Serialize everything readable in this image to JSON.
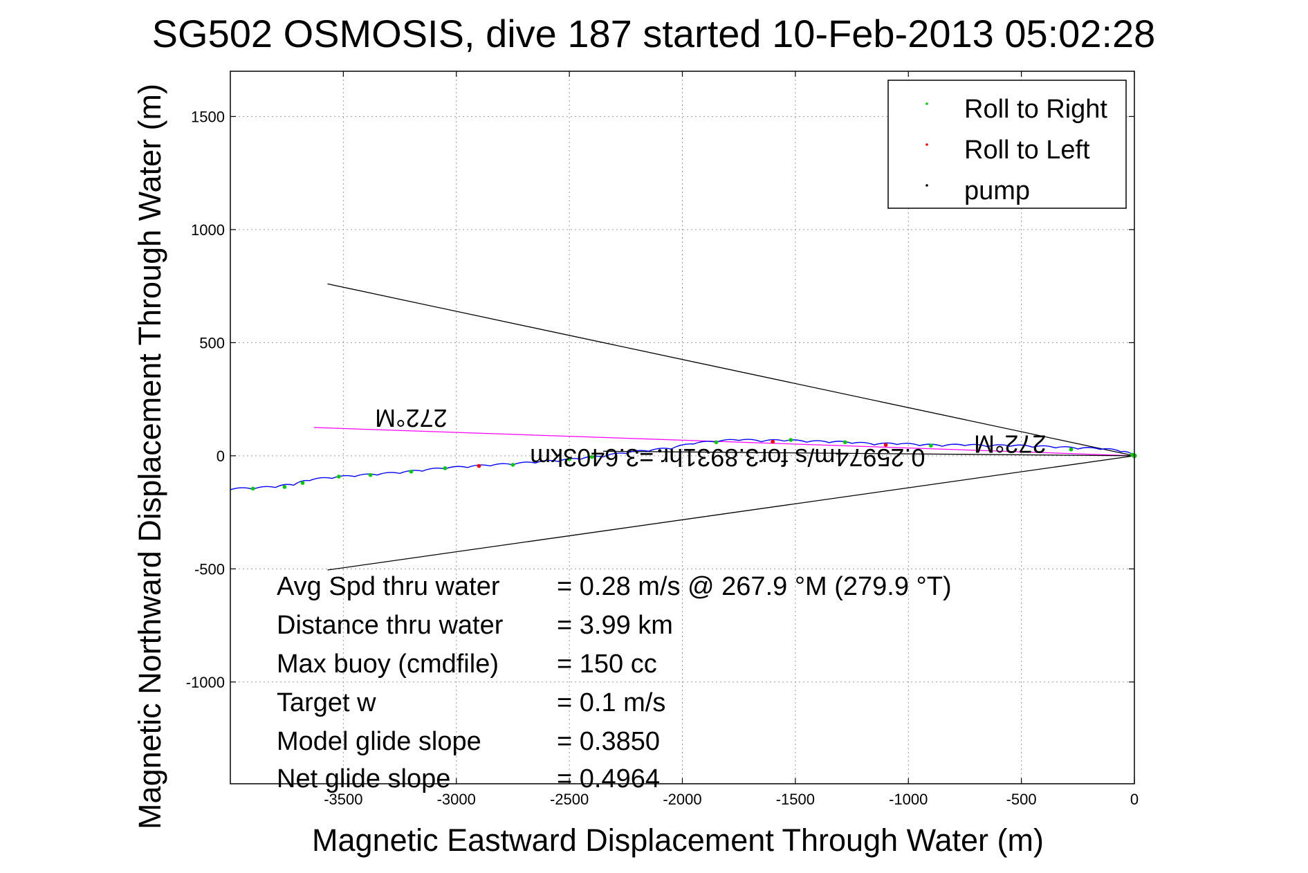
{
  "chart_data": {
    "type": "line",
    "title": "SG502 OSMOSIS, dive 187 started 10-Feb-2013 05:02:28",
    "xlabel": "Magnetic Eastward Displacement Through Water (m)",
    "ylabel": "Magnetic Northward Displacement Through Water (m)",
    "xlim": [
      -4000,
      0
    ],
    "ylim": [
      -1450,
      1700
    ],
    "xticks": [
      -3500,
      -3000,
      -2500,
      -2000,
      -1500,
      -1000,
      -500,
      0
    ],
    "yticks": [
      -1000,
      -500,
      0,
      500,
      1000,
      1500
    ],
    "grid": true,
    "legend": {
      "placement": "top-right",
      "entries": [
        {
          "label": "Roll to Right",
          "color": "#00cc00"
        },
        {
          "label": "Roll to Left",
          "color": "#ff0000"
        },
        {
          "label": "pump",
          "color": "#000000"
        }
      ]
    },
    "track": {
      "color": "#0000ff",
      "points": [
        [
          0,
          0
        ],
        [
          -60,
          18
        ],
        [
          -150,
          28
        ],
        [
          -250,
          30
        ],
        [
          -350,
          35
        ],
        [
          -450,
          38
        ],
        [
          -550,
          42
        ],
        [
          -650,
          40
        ],
        [
          -750,
          45
        ],
        [
          -850,
          42
        ],
        [
          -950,
          45
        ],
        [
          -1050,
          50
        ],
        [
          -1150,
          48
        ],
        [
          -1250,
          55
        ],
        [
          -1350,
          58
        ],
        [
          -1450,
          60
        ],
        [
          -1550,
          65
        ],
        [
          -1650,
          62
        ],
        [
          -1750,
          68
        ],
        [
          -1850,
          60
        ],
        [
          -1950,
          52
        ],
        [
          -2050,
          30
        ],
        [
          -2150,
          20
        ],
        [
          -2250,
          10
        ],
        [
          -2350,
          -5
        ],
        [
          -2450,
          -15
        ],
        [
          -2550,
          -25
        ],
        [
          -2650,
          -32
        ],
        [
          -2750,
          -40
        ],
        [
          -2850,
          -45
        ],
        [
          -2950,
          -52
        ],
        [
          -3050,
          -58
        ],
        [
          -3150,
          -68
        ],
        [
          -3250,
          -78
        ],
        [
          -3350,
          -85
        ],
        [
          -3450,
          -92
        ],
        [
          -3550,
          -100
        ],
        [
          -3650,
          -110
        ],
        [
          -3720,
          -130
        ],
        [
          -3800,
          -140
        ],
        [
          -3900,
          -148
        ],
        [
          -4000,
          -150
        ]
      ]
    },
    "roll_right_points": [
      [
        -10,
        5
      ],
      [
        -280,
        28
      ],
      [
        -900,
        45
      ],
      [
        -1280,
        60
      ],
      [
        -1520,
        70
      ],
      [
        -1850,
        60
      ],
      [
        -2400,
        -5
      ],
      [
        -2500,
        -15
      ],
      [
        -2750,
        -40
      ],
      [
        -3050,
        -55
      ],
      [
        -3200,
        -70
      ],
      [
        -3380,
        -85
      ],
      [
        -3520,
        -92
      ],
      [
        -3680,
        -120
      ],
      [
        -3760,
        -138
      ],
      [
        -3900,
        -145
      ]
    ],
    "roll_left_points": [
      [
        -1600,
        62
      ],
      [
        -1100,
        48
      ],
      [
        -2900,
        -45
      ]
    ],
    "pump_points": [
      [
        -2100,
        22
      ]
    ],
    "lines": [
      {
        "name": "cone-upper",
        "color": "#000000",
        "points": [
          [
            0,
            0
          ],
          [
            -3570,
            760
          ]
        ]
      },
      {
        "name": "cone-lower",
        "color": "#000000",
        "points": [
          [
            0,
            0
          ],
          [
            -3570,
            -505
          ]
        ]
      },
      {
        "name": "heading-line",
        "color": "#ff00ff",
        "points": [
          [
            0,
            0
          ],
          [
            -3630,
            125
          ]
        ]
      },
      {
        "name": "current-line",
        "color": "#000000",
        "points": [
          [
            0,
            0
          ],
          [
            -2350,
            20
          ]
        ]
      }
    ],
    "annotations": [
      {
        "text": "272°M",
        "x": -3200,
        "y": 205
      },
      {
        "text": "272°M",
        "x": -550,
        "y": 90
      },
      {
        "text": "0.25974m/s for3.8931hr =3.6403km",
        "x": -1800,
        "y": 30
      }
    ],
    "stats": [
      {
        "label": "Avg Spd thru water",
        "value": "=  0.28 m/s @ 267.9 °M (279.9 °T)"
      },
      {
        "label": "Distance thru water",
        "value": "=  3.99 km"
      },
      {
        "label": "Max buoy (cmdfile)",
        "value": "= 150 cc"
      },
      {
        "label": "Target w",
        "value": "= 0.1 m/s"
      },
      {
        "label": "Model glide slope",
        "value": "= 0.3850"
      },
      {
        "label": "Net glide slope",
        "value": "= 0.4964"
      }
    ]
  }
}
